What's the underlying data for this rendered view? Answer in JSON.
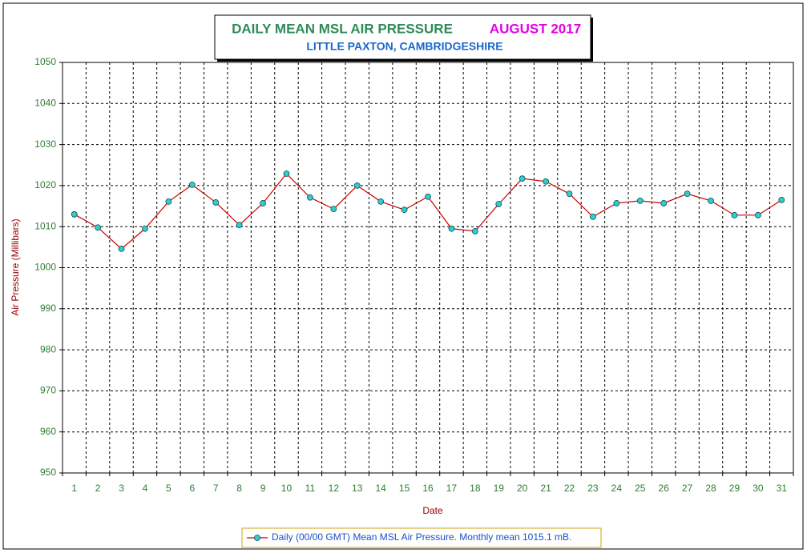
{
  "chart_data": {
    "type": "line",
    "title": "DAILY MEAN MSL AIR PRESSURE",
    "title_period": "AUGUST 2017",
    "subtitle": "LITTLE PAXTON, CAMBRIDGESHIRE",
    "x_label": "Date",
    "y_label": "Air Pressure (Millibars)",
    "categories": [
      "1",
      "2",
      "3",
      "4",
      "5",
      "6",
      "7",
      "8",
      "9",
      "10",
      "11",
      "12",
      "13",
      "14",
      "15",
      "16",
      "17",
      "18",
      "19",
      "20",
      "21",
      "22",
      "23",
      "24",
      "25",
      "26",
      "27",
      "28",
      "29",
      "30",
      "31"
    ],
    "series": [
      {
        "name": "Daily (00/00 GMT) Mean MSL Air Pressure. Monthly mean 1015.1 mB.",
        "color": "#cc0000",
        "marker_color": "#33cccc",
        "values": [
          1013.0,
          1009.8,
          1004.6,
          1009.5,
          1016.1,
          1020.2,
          1015.9,
          1010.4,
          1015.7,
          1022.9,
          1017.1,
          1014.3,
          1020.0,
          1016.1,
          1014.1,
          1017.3,
          1009.5,
          1008.9,
          1015.5,
          1021.7,
          1021.0,
          1018.0,
          1012.4,
          1015.7,
          1016.3,
          1015.7,
          1018.0,
          1016.3,
          1012.8,
          1012.8,
          1016.5
        ]
      }
    ],
    "ylim": [
      950,
      1050
    ],
    "yticks": [
      950,
      960,
      970,
      980,
      990,
      1000,
      1010,
      1020,
      1030,
      1040,
      1050
    ],
    "grid": true,
    "legend": "bottom"
  }
}
